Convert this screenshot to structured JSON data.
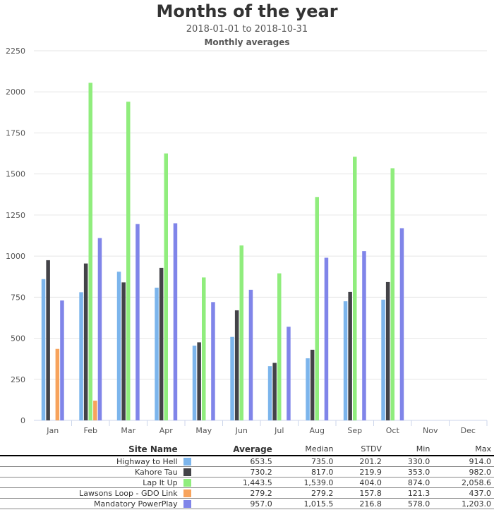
{
  "chart_data": {
    "type": "bar",
    "title": "Months of the year",
    "subtitle": "2018-01-01 to 2018-10-31",
    "subtitle2": "Monthly averages",
    "categories": [
      "Jan",
      "Feb",
      "Mar",
      "Apr",
      "May",
      "Jun",
      "Jul",
      "Aug",
      "Sep",
      "Oct",
      "Nov",
      "Dec"
    ],
    "ylim": [
      0,
      2250
    ],
    "yticks": [
      "0",
      "250",
      "500",
      "750",
      "1000",
      "1250",
      "1500",
      "1750",
      "2000",
      "2250"
    ],
    "grid": true,
    "series": [
      {
        "name": "Highway to Hell",
        "color": "#7cb5ec",
        "values": [
          860,
          780,
          905,
          808,
          455,
          508,
          330,
          378,
          725,
          735,
          null,
          null
        ]
      },
      {
        "name": "Kahore Tau",
        "color": "#434348",
        "values": [
          975,
          955,
          840,
          928,
          475,
          670,
          350,
          430,
          782,
          842,
          null,
          null
        ]
      },
      {
        "name": "Lap It Up",
        "color": "#90ed7d",
        "values": [
          null,
          2055,
          1940,
          1625,
          870,
          1065,
          895,
          1360,
          1605,
          1535,
          null,
          null
        ]
      },
      {
        "name": "Lawsons Loop - GDO Link",
        "color": "#f7a35c",
        "values": [
          435,
          120,
          null,
          null,
          null,
          null,
          null,
          null,
          null,
          null,
          null,
          null
        ]
      },
      {
        "name": "Mandatory PowerPlay",
        "color": "#8085e9",
        "values": [
          730,
          1110,
          1195,
          1200,
          720,
          795,
          570,
          990,
          1030,
          1170,
          null,
          null
        ]
      }
    ]
  },
  "table": {
    "headers": [
      "Site Name",
      "Average",
      "Median",
      "STDV",
      "Min",
      "Max"
    ],
    "rows": [
      {
        "name": "Highway to Hell",
        "color": "#7cb5ec",
        "average": "653.5",
        "median": "735.0",
        "stdv": "201.2",
        "min": "330.0",
        "max": "914.0"
      },
      {
        "name": "Kahore Tau",
        "color": "#434348",
        "average": "730.2",
        "median": "817.0",
        "stdv": "219.9",
        "min": "353.0",
        "max": "982.0"
      },
      {
        "name": "Lap It Up",
        "color": "#90ed7d",
        "average": "1,443.5",
        "median": "1,539.0",
        "stdv": "404.0",
        "min": "874.0",
        "max": "2,058.6"
      },
      {
        "name": "Lawsons Loop - GDO Link",
        "color": "#f7a35c",
        "average": "279.2",
        "median": "279.2",
        "stdv": "157.8",
        "min": "121.3",
        "max": "437.0"
      },
      {
        "name": "Mandatory PowerPlay",
        "color": "#8085e9",
        "average": "957.0",
        "median": "1,015.5",
        "stdv": "216.8",
        "min": "578.0",
        "max": "1,203.0"
      }
    ]
  }
}
